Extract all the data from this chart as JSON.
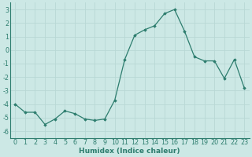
{
  "x": [
    0,
    1,
    2,
    3,
    4,
    5,
    6,
    7,
    8,
    9,
    10,
    11,
    12,
    13,
    14,
    15,
    16,
    17,
    18,
    19,
    20,
    21,
    22,
    23
  ],
  "y": [
    -4.0,
    -4.6,
    -4.6,
    -5.5,
    -5.1,
    -4.5,
    -4.7,
    -5.1,
    -5.2,
    -5.1,
    -3.7,
    -0.7,
    1.1,
    1.5,
    1.8,
    2.7,
    3.0,
    1.4,
    -0.5,
    -0.8,
    -0.8,
    -2.1,
    -0.7,
    -2.8
  ],
  "xlabel": "Humidex (Indice chaleur)",
  "xlim": [
    -0.5,
    23.5
  ],
  "ylim": [
    -6.5,
    3.5
  ],
  "yticks": [
    -6,
    -5,
    -4,
    -3,
    -2,
    -1,
    0,
    1,
    2,
    3
  ],
  "xticks": [
    0,
    1,
    2,
    3,
    4,
    5,
    6,
    7,
    8,
    9,
    10,
    11,
    12,
    13,
    14,
    15,
    16,
    17,
    18,
    19,
    20,
    21,
    22,
    23
  ],
  "line_color": "#2d7d6e",
  "marker": "D",
  "marker_size": 1.8,
  "line_width": 0.9,
  "bg_color": "#cce8e5",
  "grid_color": "#b8d8d5",
  "label_fontsize": 6.5,
  "tick_fontsize": 5.8
}
